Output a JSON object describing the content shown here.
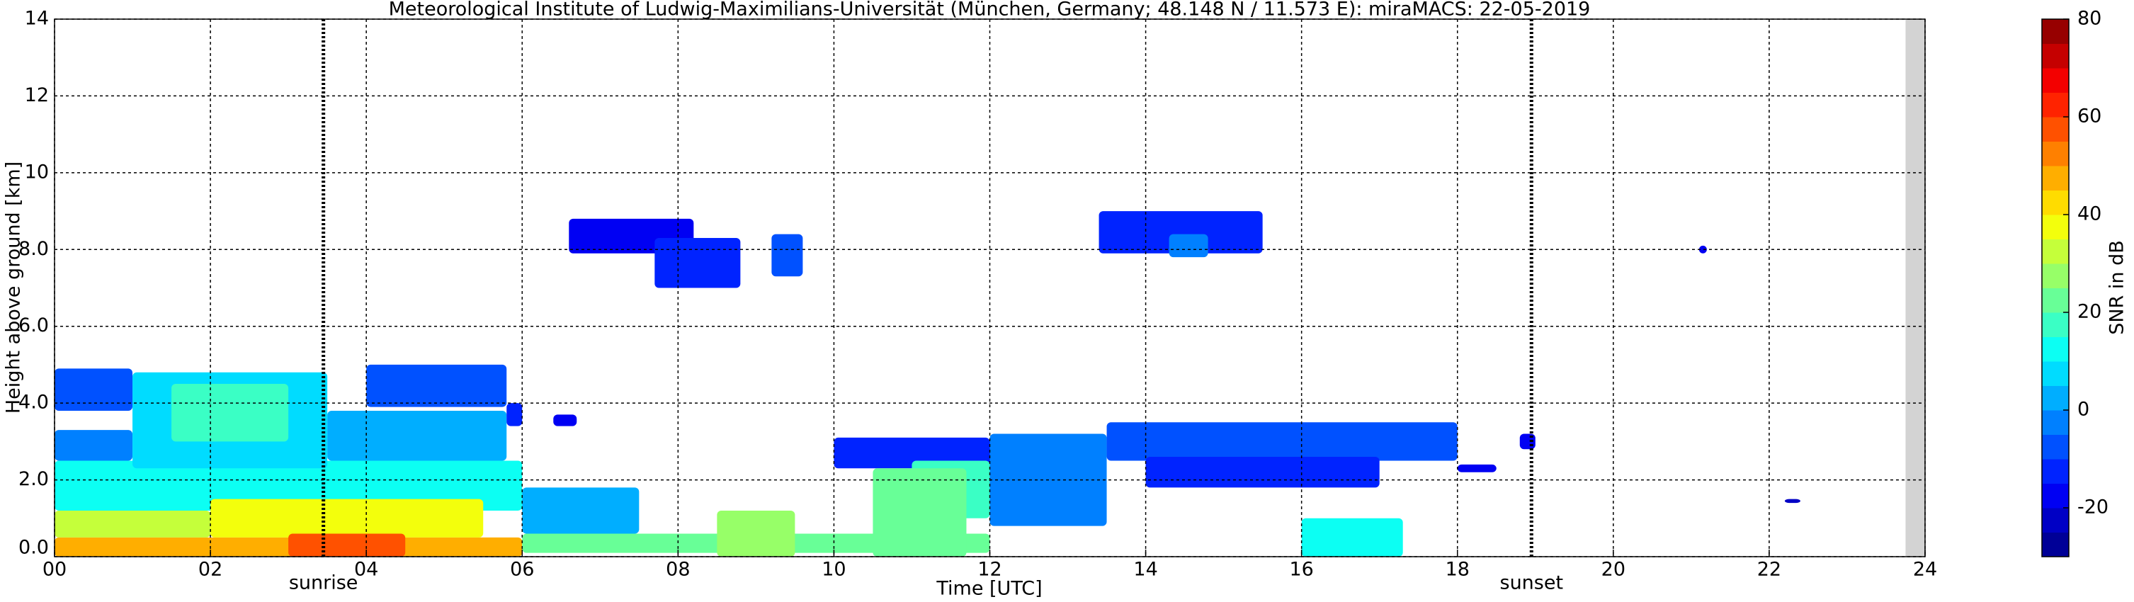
{
  "chart_data": {
    "type": "heatmap",
    "title": "Meteorological Institute of Ludwig-Maximilians-Universität (München, Germany; 48.148 N / 11.573 E):    miraMACS: 22-05-2019",
    "x_label": "Time [UTC]",
    "y_label": "Height above ground [km]",
    "colorbar_label": "SNR in dB",
    "xlim": [
      0,
      24
    ],
    "ylim": [
      0,
      14
    ],
    "clim": [
      -30,
      80
    ],
    "xticks": [
      {
        "value": 0,
        "label": "00"
      },
      {
        "value": 2,
        "label": "02"
      },
      {
        "value": 4,
        "label": "04"
      },
      {
        "value": 6,
        "label": "06"
      },
      {
        "value": 8,
        "label": "08"
      },
      {
        "value": 10,
        "label": "10"
      },
      {
        "value": 12,
        "label": "12"
      },
      {
        "value": 14,
        "label": "14"
      },
      {
        "value": 16,
        "label": "16"
      },
      {
        "value": 18,
        "label": "18"
      },
      {
        "value": 20,
        "label": "20"
      },
      {
        "value": 22,
        "label": "22"
      },
      {
        "value": 24,
        "label": "24"
      }
    ],
    "yticks": [
      {
        "value": 0,
        "label": "0.0"
      },
      {
        "value": 2,
        "label": "2.0"
      },
      {
        "value": 4,
        "label": "4.0"
      },
      {
        "value": 6,
        "label": "6.0"
      },
      {
        "value": 8,
        "label": "8.0"
      },
      10,
      12,
      14
    ],
    "cticks": [
      -20,
      0,
      20,
      40,
      60,
      80
    ],
    "grid": true,
    "colormap": "jet",
    "no_data_x": [
      23.75,
      24
    ],
    "annotations": [
      {
        "x": 3.45,
        "label": "sunrise"
      },
      {
        "x": 18.95,
        "label": "sunset"
      }
    ],
    "patches": [
      {
        "x": [
          0,
          6
        ],
        "y": [
          1.2,
          2.5
        ],
        "value": 10
      },
      {
        "x": [
          0,
          1
        ],
        "y": [
          2.5,
          3.3
        ],
        "value": -5
      },
      {
        "x": [
          1,
          3.5
        ],
        "y": [
          2.3,
          4.8
        ],
        "value": 5
      },
      {
        "x": [
          0,
          1
        ],
        "y": [
          3.8,
          4.9
        ],
        "value": -10
      },
      {
        "x": [
          1.5,
          3
        ],
        "y": [
          3,
          4.5
        ],
        "value": 15
      },
      {
        "x": [
          3.5,
          5.8
        ],
        "y": [
          2.5,
          3.8
        ],
        "value": 0
      },
      {
        "x": [
          4,
          5.8
        ],
        "y": [
          3.9,
          5.0
        ],
        "value": -10
      },
      {
        "x": [
          5.8,
          6
        ],
        "y": [
          3.4,
          4
        ],
        "value": -15
      },
      {
        "x": [
          6.4,
          6.7
        ],
        "y": [
          3.4,
          3.7
        ],
        "value": -20
      },
      {
        "x": [
          0,
          6
        ],
        "y": [
          0,
          0.5
        ],
        "value": 45
      },
      {
        "x": [
          0,
          2
        ],
        "y": [
          0.5,
          1.2
        ],
        "value": 30
      },
      {
        "x": [
          2,
          5.5
        ],
        "y": [
          0.5,
          1.5
        ],
        "value": 35
      },
      {
        "x": [
          3,
          4.5
        ],
        "y": [
          0,
          0.6
        ],
        "value": 55
      },
      {
        "x": [
          6,
          12
        ],
        "y": [
          0.1,
          0.6
        ],
        "value": 20
      },
      {
        "x": [
          6,
          7.5
        ],
        "y": [
          0.6,
          1.8
        ],
        "value": 0
      },
      {
        "x": [
          8.5,
          9.5
        ],
        "y": [
          0,
          1.2
        ],
        "value": 25
      },
      {
        "x": [
          10,
          12
        ],
        "y": [
          2.3,
          3.1
        ],
        "value": -15
      },
      {
        "x": [
          11,
          12
        ],
        "y": [
          1,
          2.5
        ],
        "value": 15
      },
      {
        "x": [
          10.5,
          11.7
        ],
        "y": [
          0,
          2.3
        ],
        "value": 20
      },
      {
        "x": [
          12,
          13.5
        ],
        "y": [
          0.8,
          3.2
        ],
        "value": -5
      },
      {
        "x": [
          13.5,
          18
        ],
        "y": [
          2.5,
          3.5
        ],
        "value": -10
      },
      {
        "x": [
          14,
          17
        ],
        "y": [
          1.8,
          2.6
        ],
        "value": -15
      },
      {
        "x": [
          16,
          17.3
        ],
        "y": [
          0,
          1.0
        ],
        "value": 10
      },
      {
        "x": [
          18,
          18.5
        ],
        "y": [
          2.2,
          2.4
        ],
        "value": -20
      },
      {
        "x": [
          18.8,
          19
        ],
        "y": [
          2.8,
          3.2
        ],
        "value": -20
      },
      {
        "x": [
          6.6,
          8.2
        ],
        "y": [
          7.9,
          8.8
        ],
        "value": -20
      },
      {
        "x": [
          7.7,
          8.8
        ],
        "y": [
          7.0,
          8.3
        ],
        "value": -15
      },
      {
        "x": [
          9.2,
          9.6
        ],
        "y": [
          7.3,
          8.4
        ],
        "value": -10
      },
      {
        "x": [
          13.4,
          15.5
        ],
        "y": [
          7.9,
          9.0
        ],
        "value": -15
      },
      {
        "x": [
          14.3,
          14.8
        ],
        "y": [
          7.8,
          8.4
        ],
        "value": -5
      },
      {
        "x": [
          21.1,
          21.2
        ],
        "y": [
          7.9,
          8.1
        ],
        "value": -20
      },
      {
        "x": [
          22.2,
          22.4
        ],
        "y": [
          1.4,
          1.5
        ],
        "value": -25
      }
    ]
  }
}
